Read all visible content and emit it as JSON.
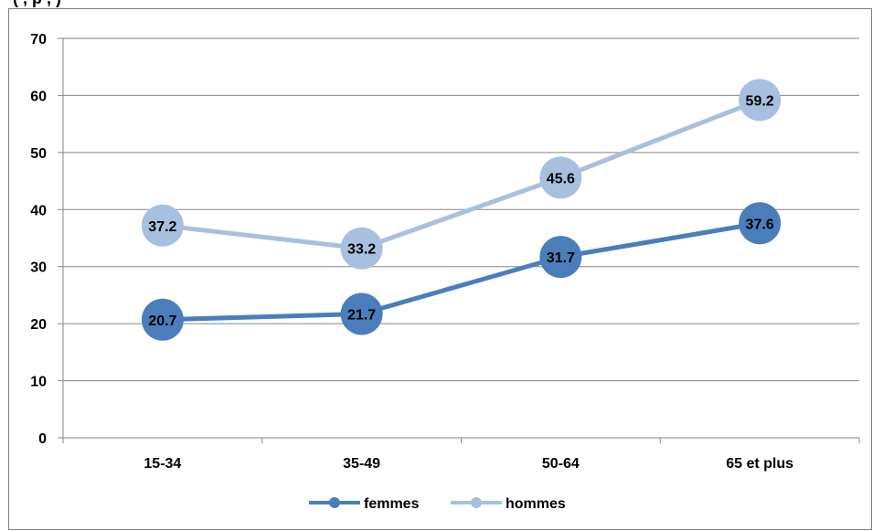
{
  "page": {
    "partial_title": "(         , p          ,       )"
  },
  "chart_data": {
    "type": "line",
    "categories": [
      "15-34",
      "35-49",
      "50-64",
      "65 et plus"
    ],
    "series": [
      {
        "name": "femmes",
        "values": [
          20.7,
          21.7,
          31.7,
          37.6
        ],
        "color": "#4a7ebb"
      },
      {
        "name": "hommes",
        "values": [
          37.2,
          33.2,
          45.6,
          59.2
        ],
        "color": "#a7c0df"
      }
    ],
    "ylim": [
      0,
      70
    ],
    "yticks": [
      "0",
      "10",
      "20",
      "30",
      "40",
      "50",
      "60",
      "70"
    ],
    "grid": true,
    "legend_position": "bottom",
    "title": "",
    "xlabel": "",
    "ylabel": ""
  }
}
